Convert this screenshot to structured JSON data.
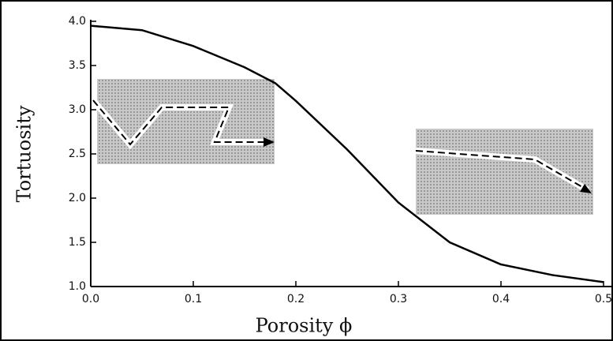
{
  "chart_data": {
    "type": "line",
    "x_label": "Porosity ϕ",
    "y_label": "Tortuosity",
    "x": [
      0,
      0.05,
      0.1,
      0.15,
      0.18,
      0.2,
      0.25,
      0.3,
      0.35,
      0.4,
      0.45,
      0.5
    ],
    "series": [
      {
        "color": "#000000",
        "values": [
          3.95,
          3.9,
          3.72,
          3.48,
          3.3,
          3.1,
          2.55,
          1.95,
          1.5,
          1.25,
          1.13,
          1.05
        ]
      }
    ],
    "xlim": [
      0,
      0.5
    ],
    "ylim": [
      1,
      4
    ],
    "xticks": [
      {
        "value": 0,
        "label": "0.0"
      },
      0.1,
      0.2,
      0.3,
      0.4,
      0.5
    ],
    "yticks": [
      {
        "value": 1,
        "label": "1.0"
      },
      1.5,
      {
        "value": 2,
        "label": "2.0"
      },
      2.5,
      {
        "value": 3,
        "label": "3.0"
      },
      3.5,
      {
        "value": 4,
        "label": "4.0"
      }
    ]
  }
}
